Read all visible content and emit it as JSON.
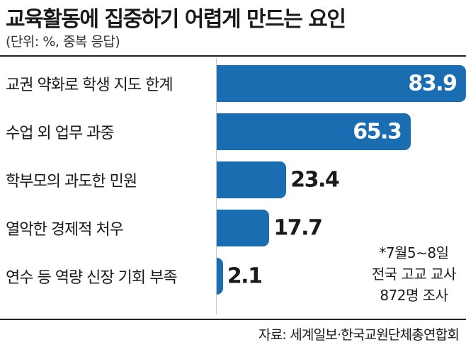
{
  "chart_data": {
    "type": "bar",
    "orientation": "horizontal",
    "title": "교육활동에 집중하기 어렵게 만드는 요인",
    "subtitle": "(단위: %, 중복 응답)",
    "categories": [
      "교권 약화로 학생 지도 한계",
      "수업 외 업무 과중",
      "학부모의 과도한 민원",
      "열악한 경제적 처우",
      "연수 등 역량 신장 기회 부족"
    ],
    "values": [
      83.9,
      65.3,
      23.4,
      17.7,
      2.1
    ],
    "value_labels": [
      "83.9",
      "65.3",
      "23.4",
      "17.7",
      "2.1"
    ],
    "xlim": [
      0,
      100
    ],
    "bar_color": "#1a6db0",
    "grid": false,
    "legend": "none",
    "note": [
      "*7월5∼8일",
      "전국 고교 교사",
      "872명 조사"
    ],
    "source": "자료: 세계일보·한국교원단체총연합회"
  }
}
